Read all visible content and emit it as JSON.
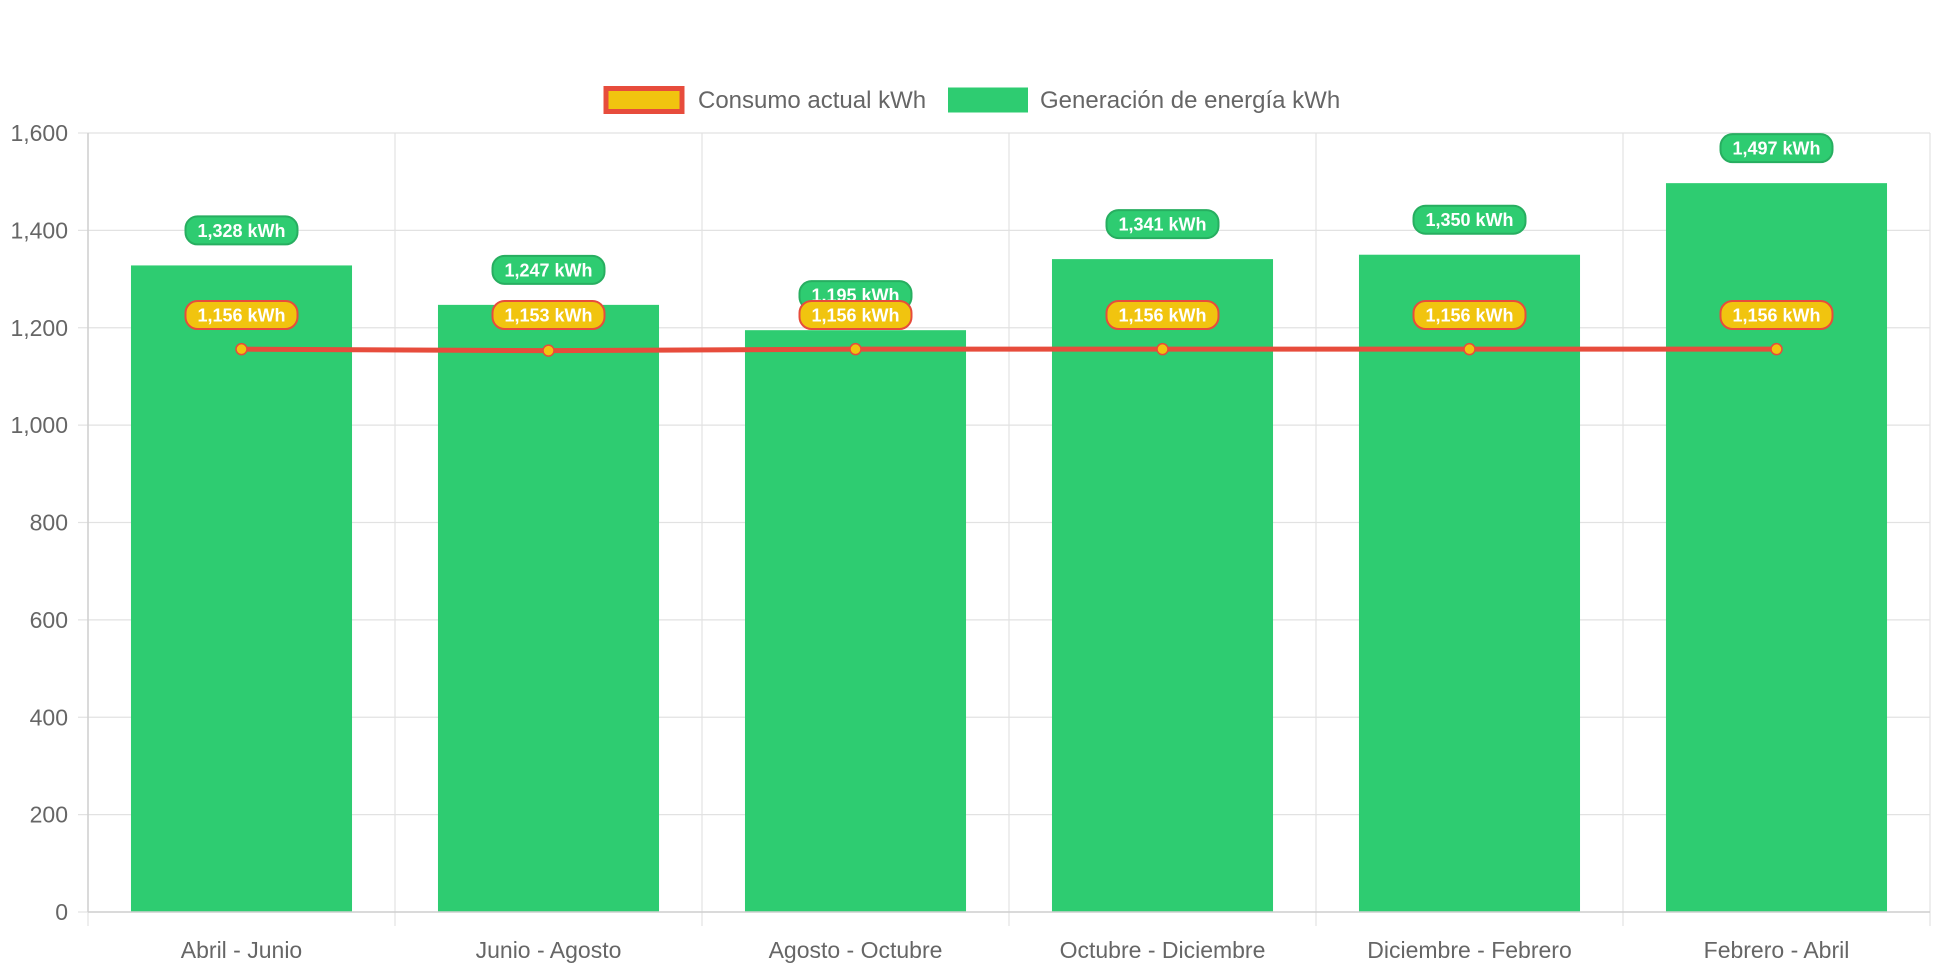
{
  "chart_data": {
    "type": "bar",
    "categories": [
      "Abril - Junio",
      "Junio - Agosto",
      "Agosto - Octubre",
      "Octubre - Diciembre",
      "Diciembre - Febrero",
      "Febrero - Abril"
    ],
    "series": [
      {
        "name": "Consumo actual kWh",
        "type": "line",
        "values": [
          1156,
          1153,
          1156,
          1156,
          1156,
          1156
        ],
        "labels": [
          "1,156 kWh",
          "1,153 kWh",
          "1,156 kWh",
          "1,156 kWh",
          "1,156 kWh",
          "1,156 kWh"
        ],
        "line_color": "#e74c3c",
        "point_color": "#f1c40f",
        "label_bg": "#f1c40f",
        "label_border": "#e74c3c"
      },
      {
        "name": "Generación de energía kWh",
        "type": "bar",
        "values": [
          1328,
          1247,
          1195,
          1341,
          1350,
          1497
        ],
        "labels": [
          "1,328 kWh",
          "1,247 kWh",
          "1,195 kWh",
          "1,341 kWh",
          "1,350 kWh",
          "1,497 kWh"
        ],
        "color": "#2ecc71",
        "label_bg": "#2ecc71",
        "label_border": "#27ae60"
      }
    ],
    "ylim": [
      0,
      1600
    ],
    "yticks": [
      {
        "value": 0,
        "label": "0"
      },
      {
        "value": 200,
        "label": "200"
      },
      {
        "value": 400,
        "label": "400"
      },
      {
        "value": 600,
        "label": "600"
      },
      {
        "value": 800,
        "label": "800"
      },
      {
        "value": 1000,
        "label": "1,000"
      },
      {
        "value": 1200,
        "label": "1,200"
      },
      {
        "value": 1400,
        "label": "1,400"
      },
      {
        "value": 1600,
        "label": "1,600"
      }
    ],
    "grid": true,
    "legend_position": "top-center",
    "title": "",
    "xlabel": "",
    "ylabel": ""
  }
}
